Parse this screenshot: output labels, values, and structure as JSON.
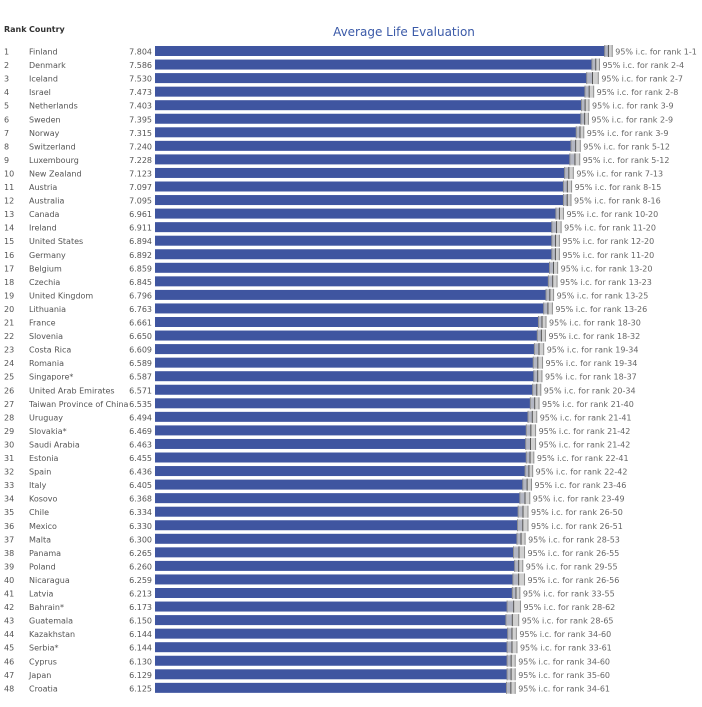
{
  "header": {
    "rank_label": "Rank",
    "country_label": "Country",
    "title": "Average Life Evaluation"
  },
  "colors": {
    "bar": "#3f55a0",
    "ci_band": "#c8c8c8",
    "ci_line": "#8f8f8f",
    "title": "#3b5aa8"
  },
  "chart_data": {
    "type": "bar",
    "orientation": "horizontal",
    "title": "Average Life Evaluation",
    "xlim": [
      0,
      7.9
    ],
    "rows": [
      {
        "rank": "1",
        "country": "Finland",
        "value": 7.804,
        "value_label": "7.804",
        "ci_low": 7.74,
        "ci_high": 7.87,
        "ci_label": "95% i.c. for rank 1-1"
      },
      {
        "rank": "2",
        "country": "Denmark",
        "value": 7.586,
        "value_label": "7.586",
        "ci_low": 7.52,
        "ci_high": 7.65,
        "ci_label": "95% i.c. for rank 2-4"
      },
      {
        "rank": "3",
        "country": "Iceland",
        "value": 7.53,
        "value_label": "7.530",
        "ci_low": 7.43,
        "ci_high": 7.63,
        "ci_label": "95% i.c. for rank 2-7"
      },
      {
        "rank": "4",
        "country": "Israel",
        "value": 7.473,
        "value_label": "7.473",
        "ci_low": 7.4,
        "ci_high": 7.55,
        "ci_label": "95% i.c. for rank 2-8"
      },
      {
        "rank": "5",
        "country": "Netherlands",
        "value": 7.403,
        "value_label": "7.403",
        "ci_low": 7.34,
        "ci_high": 7.47,
        "ci_label": "95% i.c. for rank 3-9"
      },
      {
        "rank": "6",
        "country": "Sweden",
        "value": 7.395,
        "value_label": "7.395",
        "ci_low": 7.33,
        "ci_high": 7.46,
        "ci_label": "95% i.c. for rank 2-9"
      },
      {
        "rank": "7",
        "country": "Norway",
        "value": 7.315,
        "value_label": "7.315",
        "ci_low": 7.25,
        "ci_high": 7.38,
        "ci_label": "95% i.c. for rank 3-9"
      },
      {
        "rank": "8",
        "country": "Switzerland",
        "value": 7.24,
        "value_label": "7.240",
        "ci_low": 7.16,
        "ci_high": 7.32,
        "ci_label": "95% i.c. for rank 5-12"
      },
      {
        "rank": "9",
        "country": "Luxembourg",
        "value": 7.228,
        "value_label": "7.228",
        "ci_low": 7.14,
        "ci_high": 7.31,
        "ci_label": "95% i.c. for rank 5-12"
      },
      {
        "rank": "10",
        "country": "New Zealand",
        "value": 7.123,
        "value_label": "7.123",
        "ci_low": 7.05,
        "ci_high": 7.2,
        "ci_label": "95% i.c. for rank 7-13"
      },
      {
        "rank": "11",
        "country": "Austria",
        "value": 7.097,
        "value_label": "7.097",
        "ci_low": 7.03,
        "ci_high": 7.17,
        "ci_label": "95% i.c. for rank 8-15"
      },
      {
        "rank": "12",
        "country": "Australia",
        "value": 7.095,
        "value_label": "7.095",
        "ci_low": 7.03,
        "ci_high": 7.16,
        "ci_label": "95% i.c. for rank 8-16"
      },
      {
        "rank": "13",
        "country": "Canada",
        "value": 6.961,
        "value_label": "6.961",
        "ci_low": 6.9,
        "ci_high": 7.03,
        "ci_label": "95% i.c. for rank 10-20"
      },
      {
        "rank": "14",
        "country": "Ireland",
        "value": 6.911,
        "value_label": "6.911",
        "ci_low": 6.83,
        "ci_high": 6.99,
        "ci_label": "95% i.c. for rank 11-20"
      },
      {
        "rank": "15",
        "country": "United States",
        "value": 6.894,
        "value_label": "6.894",
        "ci_low": 6.83,
        "ci_high": 6.96,
        "ci_label": "95% i.c. for rank 12-20"
      },
      {
        "rank": "16",
        "country": "Germany",
        "value": 6.892,
        "value_label": "6.892",
        "ci_low": 6.83,
        "ci_high": 6.96,
        "ci_label": "95% i.c. for rank 11-20"
      },
      {
        "rank": "17",
        "country": "Belgium",
        "value": 6.859,
        "value_label": "6.859",
        "ci_low": 6.79,
        "ci_high": 6.93,
        "ci_label": "95% i.c. for rank 13-20"
      },
      {
        "rank": "18",
        "country": "Czechia",
        "value": 6.845,
        "value_label": "6.845",
        "ci_low": 6.77,
        "ci_high": 6.92,
        "ci_label": "95% i.c. for rank 13-23"
      },
      {
        "rank": "19",
        "country": "United Kingdom",
        "value": 6.796,
        "value_label": "6.796",
        "ci_low": 6.73,
        "ci_high": 6.86,
        "ci_label": "95% i.c. for rank 13-25"
      },
      {
        "rank": "20",
        "country": "Lithuania",
        "value": 6.763,
        "value_label": "6.763",
        "ci_low": 6.69,
        "ci_high": 6.84,
        "ci_label": "95% i.c. for rank 13-26"
      },
      {
        "rank": "21",
        "country": "France",
        "value": 6.661,
        "value_label": "6.661",
        "ci_low": 6.6,
        "ci_high": 6.73,
        "ci_label": "95% i.c. for rank 18-30"
      },
      {
        "rank": "22",
        "country": "Slovenia",
        "value": 6.65,
        "value_label": "6.650",
        "ci_low": 6.58,
        "ci_high": 6.72,
        "ci_label": "95% i.c. for rank 18-32"
      },
      {
        "rank": "23",
        "country": "Costa Rica",
        "value": 6.609,
        "value_label": "6.609",
        "ci_low": 6.53,
        "ci_high": 6.69,
        "ci_label": "95% i.c. for rank 19-34"
      },
      {
        "rank": "24",
        "country": "Romania",
        "value": 6.589,
        "value_label": "6.589",
        "ci_low": 6.51,
        "ci_high": 6.67,
        "ci_label": "95% i.c. for rank 19-34"
      },
      {
        "rank": "25",
        "country": "Singapore*",
        "value": 6.587,
        "value_label": "6.587",
        "ci_low": 6.52,
        "ci_high": 6.66,
        "ci_label": "95% i.c. for rank 18-37"
      },
      {
        "rank": "26",
        "country": "United Arab Emirates",
        "value": 6.571,
        "value_label": "6.571",
        "ci_low": 6.5,
        "ci_high": 6.64,
        "ci_label": "95% i.c. for rank 20-34"
      },
      {
        "rank": "27",
        "country": "Taiwan Province of China",
        "value": 6.535,
        "value_label": "6.535",
        "ci_low": 6.46,
        "ci_high": 6.61,
        "ci_label": "95% i.c. for rank 21-40"
      },
      {
        "rank": "28",
        "country": "Uruguay",
        "value": 6.494,
        "value_label": "6.494",
        "ci_low": 6.42,
        "ci_high": 6.57,
        "ci_label": "95% i.c. for rank 21-41"
      },
      {
        "rank": "29",
        "country": "Slovakia*",
        "value": 6.469,
        "value_label": "6.469",
        "ci_low": 6.39,
        "ci_high": 6.55,
        "ci_label": "95% i.c. for rank 21-42"
      },
      {
        "rank": "30",
        "country": "Saudi Arabia",
        "value": 6.463,
        "value_label": "6.463",
        "ci_low": 6.38,
        "ci_high": 6.55,
        "ci_label": "95% i.c. for rank 21-42"
      },
      {
        "rank": "31",
        "country": "Estonia",
        "value": 6.455,
        "value_label": "6.455",
        "ci_low": 6.39,
        "ci_high": 6.52,
        "ci_label": "95% i.c. for rank 22-41"
      },
      {
        "rank": "32",
        "country": "Spain",
        "value": 6.436,
        "value_label": "6.436",
        "ci_low": 6.37,
        "ci_high": 6.5,
        "ci_label": "95% i.c. for rank 22-42"
      },
      {
        "rank": "33",
        "country": "Italy",
        "value": 6.405,
        "value_label": "6.405",
        "ci_low": 6.33,
        "ci_high": 6.48,
        "ci_label": "95% i.c. for rank 23-46"
      },
      {
        "rank": "34",
        "country": "Kosovo",
        "value": 6.368,
        "value_label": "6.368",
        "ci_low": 6.28,
        "ci_high": 6.45,
        "ci_label": "95% i.c. for rank 23-49"
      },
      {
        "rank": "35",
        "country": "Chile",
        "value": 6.334,
        "value_label": "6.334",
        "ci_low": 6.25,
        "ci_high": 6.42,
        "ci_label": "95% i.c. for rank 26-50"
      },
      {
        "rank": "36",
        "country": "Mexico",
        "value": 6.33,
        "value_label": "6.330",
        "ci_low": 6.24,
        "ci_high": 6.42,
        "ci_label": "95% i.c. for rank 26-51"
      },
      {
        "rank": "37",
        "country": "Malta",
        "value": 6.3,
        "value_label": "6.300",
        "ci_low": 6.23,
        "ci_high": 6.37,
        "ci_label": "95% i.c. for rank 28-53"
      },
      {
        "rank": "38",
        "country": "Panama",
        "value": 6.265,
        "value_label": "6.265",
        "ci_low": 6.17,
        "ci_high": 6.36,
        "ci_label": "95% i.c. for rank 26-55"
      },
      {
        "rank": "39",
        "country": "Poland",
        "value": 6.26,
        "value_label": "6.260",
        "ci_low": 6.19,
        "ci_high": 6.33,
        "ci_label": "95% i.c. for rank 29-55"
      },
      {
        "rank": "40",
        "country": "Nicaragua",
        "value": 6.259,
        "value_label": "6.259",
        "ci_low": 6.16,
        "ci_high": 6.36,
        "ci_label": "95% i.c. for rank 26-56"
      },
      {
        "rank": "41",
        "country": "Latvia",
        "value": 6.213,
        "value_label": "6.213",
        "ci_low": 6.15,
        "ci_high": 6.28,
        "ci_label": "95% i.c. for rank 33-55"
      },
      {
        "rank": "42",
        "country": "Bahrain*",
        "value": 6.173,
        "value_label": "6.173",
        "ci_low": 6.06,
        "ci_high": 6.29,
        "ci_label": "95% i.c. for rank 28-62"
      },
      {
        "rank": "43",
        "country": "Guatemala",
        "value": 6.15,
        "value_label": "6.150",
        "ci_low": 6.04,
        "ci_high": 6.26,
        "ci_label": "95% i.c. for rank 28-65"
      },
      {
        "rank": "44",
        "country": "Kazakhstan",
        "value": 6.144,
        "value_label": "6.144",
        "ci_low": 6.07,
        "ci_high": 6.22,
        "ci_label": "95% i.c. for rank 34-60"
      },
      {
        "rank": "45",
        "country": "Serbia*",
        "value": 6.144,
        "value_label": "6.144",
        "ci_low": 6.06,
        "ci_high": 6.23,
        "ci_label": "95% i.c. for rank 33-61"
      },
      {
        "rank": "46",
        "country": "Cyprus",
        "value": 6.13,
        "value_label": "6.130",
        "ci_low": 6.06,
        "ci_high": 6.2,
        "ci_label": "95% i.c. for rank 34-60"
      },
      {
        "rank": "47",
        "country": "Japan",
        "value": 6.129,
        "value_label": "6.129",
        "ci_low": 6.06,
        "ci_high": 6.2,
        "ci_label": "95% i.c. for rank 35-60"
      },
      {
        "rank": "48",
        "country": "Croatia",
        "value": 6.125,
        "value_label": "6.125",
        "ci_low": 6.05,
        "ci_high": 6.2,
        "ci_label": "95% i.c. for rank 34-61"
      }
    ]
  }
}
